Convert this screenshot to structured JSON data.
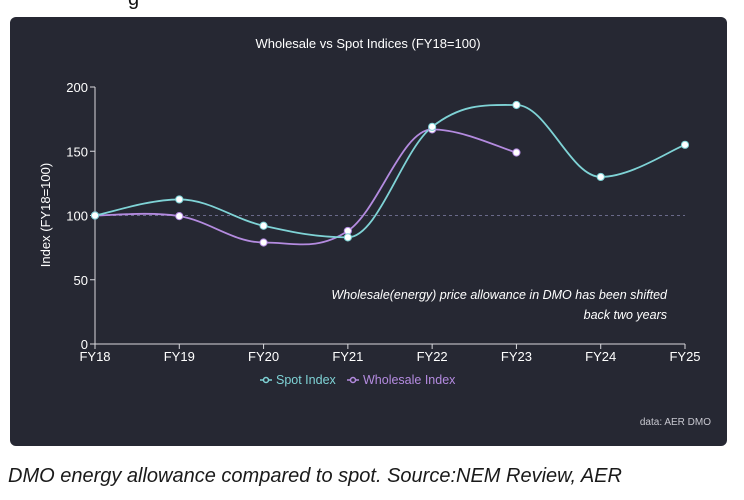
{
  "page": {
    "top_fragment": "g",
    "caption": "DMO energy allowance compared to spot. Source:NEM Review, AER"
  },
  "chart_data": {
    "type": "line",
    "title": "Wholesale vs Spot Indices (FY18=100)",
    "xlabel": "",
    "ylabel": "Index (FY18=100)",
    "categories": [
      "FY18",
      "FY19",
      "FY20",
      "FY21",
      "FY22",
      "FY23",
      "FY24",
      "FY25"
    ],
    "ylim": [
      0,
      200
    ],
    "yticks": [
      0,
      50,
      100,
      150,
      200
    ],
    "reference_line": {
      "y": 100,
      "style": "dashed"
    },
    "series": [
      {
        "name": "Spot Index",
        "color": "#7fd3d6",
        "values": [
          100,
          112.5,
          92,
          83,
          169,
          186,
          130,
          155
        ]
      },
      {
        "name": "Wholesale Index",
        "color": "#b48be0",
        "values": [
          100,
          99.5,
          79,
          88,
          167,
          149,
          null,
          null
        ]
      }
    ],
    "annotation": {
      "line1": "Wholesale(energy) price allowance in DMO has been shifted",
      "line2": "back two years"
    },
    "legend_position": "bottom-center",
    "source_note": "data: AER DMO",
    "grid": false
  },
  "colors": {
    "card_bg": "#262833",
    "axis": "#d9d9de",
    "text": "#ffffff",
    "point_fill": "#ffffff"
  }
}
